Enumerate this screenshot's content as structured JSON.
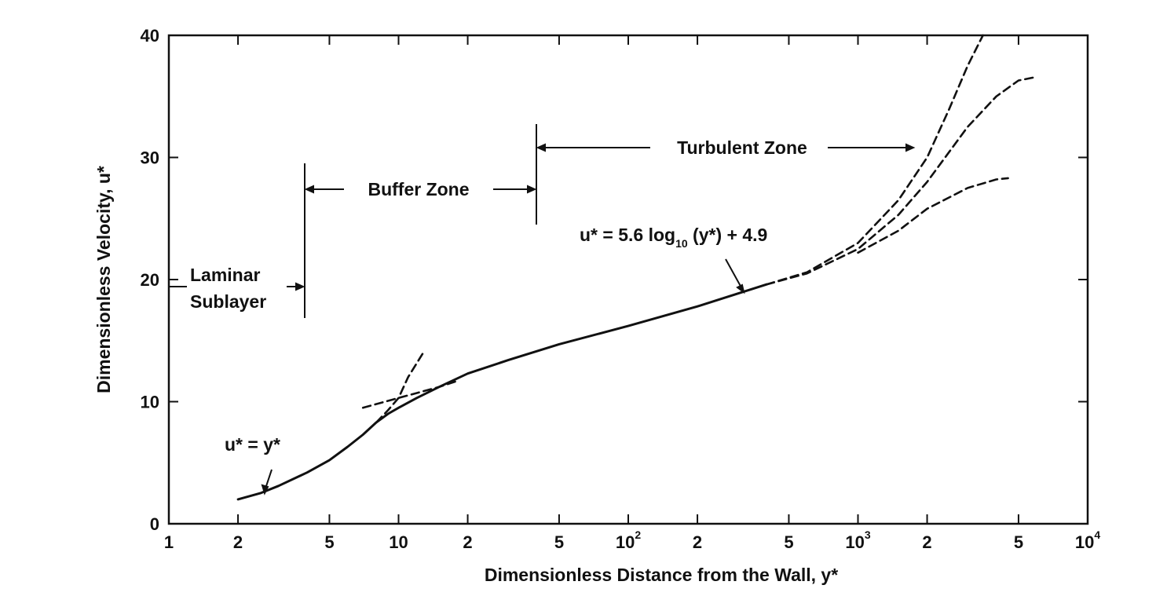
{
  "chart_data": {
    "type": "line",
    "xscale": "log",
    "xlim": [
      1,
      10000
    ],
    "ylim": [
      0,
      40
    ],
    "xlabel": "Dimensionless Distance from the Wall, y*",
    "ylabel": "Dimensionless Velocity, u*",
    "x_ticks": [
      {
        "value": 1,
        "label": "1"
      },
      {
        "value": 2,
        "label": "2"
      },
      {
        "value": 5,
        "label": "5"
      },
      {
        "value": 10,
        "label": "10"
      },
      {
        "value": 20,
        "label": "2"
      },
      {
        "value": 50,
        "label": "5"
      },
      {
        "value": 100,
        "label": "10",
        "exp": "2"
      },
      {
        "value": 200,
        "label": "2"
      },
      {
        "value": 500,
        "label": "5"
      },
      {
        "value": 1000,
        "label": "10",
        "exp": "3"
      },
      {
        "value": 2000,
        "label": "2"
      },
      {
        "value": 5000,
        "label": "5"
      },
      {
        "value": 10000,
        "label": "10",
        "exp": "4"
      }
    ],
    "y_ticks": [
      {
        "value": 0,
        "label": "0"
      },
      {
        "value": 10,
        "label": "10"
      },
      {
        "value": 20,
        "label": "20"
      },
      {
        "value": 30,
        "label": "30"
      },
      {
        "value": 40,
        "label": "40"
      }
    ],
    "series": [
      {
        "style": "solid",
        "points": [
          [
            2,
            2.0
          ],
          [
            2.5,
            2.5
          ],
          [
            3,
            3.1
          ],
          [
            4,
            4.2
          ],
          [
            5,
            5.2
          ],
          [
            6,
            6.3
          ],
          [
            7,
            7.3
          ],
          [
            8,
            8.3
          ],
          [
            9,
            9.0
          ],
          [
            10,
            9.5
          ],
          [
            12,
            10.3
          ],
          [
            15,
            11.2
          ],
          [
            20,
            12.3
          ],
          [
            30,
            13.4
          ],
          [
            50,
            14.7
          ],
          [
            100,
            16.2
          ],
          [
            200,
            17.8
          ],
          [
            400,
            19.6
          ]
        ]
      },
      {
        "style": "dashed",
        "points": [
          [
            7,
            9.5
          ],
          [
            10,
            10.3
          ],
          [
            15,
            11.2
          ],
          [
            18,
            11.7
          ]
        ]
      },
      {
        "style": "dashed",
        "points": [
          [
            8,
            8.3
          ],
          [
            9,
            9.3
          ],
          [
            10,
            10.3
          ],
          [
            11,
            12.0
          ],
          [
            13,
            14.2
          ]
        ]
      },
      {
        "style": "dashed",
        "points": [
          [
            400,
            19.6
          ],
          [
            600,
            20.6
          ],
          [
            1000,
            23.0
          ],
          [
            1500,
            26.5
          ],
          [
            2000,
            30.0
          ],
          [
            2500,
            34.0
          ],
          [
            3000,
            37.5
          ],
          [
            3500,
            40.0
          ]
        ]
      },
      {
        "style": "dashed",
        "points": [
          [
            400,
            19.6
          ],
          [
            600,
            20.5
          ],
          [
            1000,
            22.5
          ],
          [
            1500,
            25.3
          ],
          [
            2000,
            28.0
          ],
          [
            3000,
            32.5
          ],
          [
            4000,
            35.0
          ],
          [
            5000,
            36.3
          ],
          [
            6000,
            36.6
          ]
        ]
      },
      {
        "style": "dashed",
        "points": [
          [
            1000,
            22.2
          ],
          [
            1500,
            24.0
          ],
          [
            2000,
            25.8
          ],
          [
            3000,
            27.5
          ],
          [
            4000,
            28.2
          ],
          [
            4500,
            28.3
          ]
        ]
      }
    ],
    "annotations": {
      "laminar_line1": "Laminar",
      "laminar_line2": "Sublayer",
      "buffer": "Buffer Zone",
      "turbulent": "Turbulent Zone",
      "eq1": "u* = y*",
      "eq2_main": "u* = 5.6 log",
      "eq2_sub": "10",
      "eq2_tail": " (y*) + 4.9"
    }
  }
}
